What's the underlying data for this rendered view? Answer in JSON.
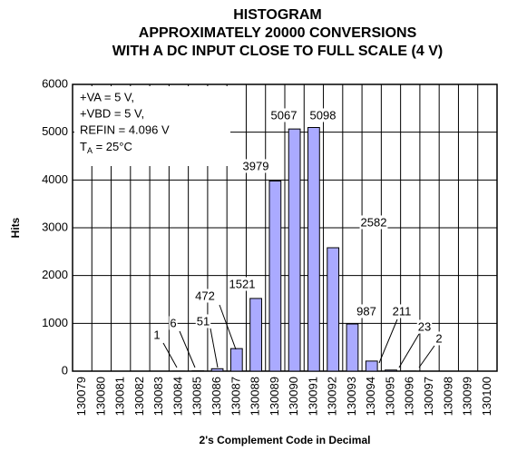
{
  "chart_data": {
    "type": "bar",
    "title": [
      "HISTOGRAM",
      "APPROXIMATELY 20000 CONVERSIONS",
      "WITH A DC INPUT CLOSE TO FULL SCALE (4 V)"
    ],
    "x_label": "2's Complement Code in Decimal",
    "y_label": "Hits",
    "annotations": [
      "+VA = 5 V,",
      "+VBD = 5 V,",
      "REFIN = 4.096 V"
    ],
    "temperature": {
      "symbol": "T",
      "subscript": "A",
      "text": " = 25°C"
    },
    "categories": [
      "130079",
      "130080",
      "130081",
      "130082",
      "130083",
      "130084",
      "130085",
      "130086",
      "130087",
      "130088",
      "130089",
      "130090",
      "130091",
      "130092",
      "130093",
      "130094",
      "130095",
      "130096",
      "130097",
      "130098",
      "130099",
      "130100"
    ],
    "values": [
      0,
      0,
      0,
      0,
      0,
      1,
      6,
      51,
      472,
      1521,
      3979,
      5067,
      5098,
      2582,
      987,
      211,
      23,
      2,
      0,
      0,
      0,
      0
    ],
    "color": "#aaaaff",
    "ylim": [
      0,
      6000
    ],
    "yticks": [
      0,
      1000,
      2000,
      3000,
      4000,
      5000,
      6000
    ],
    "grid": true
  }
}
